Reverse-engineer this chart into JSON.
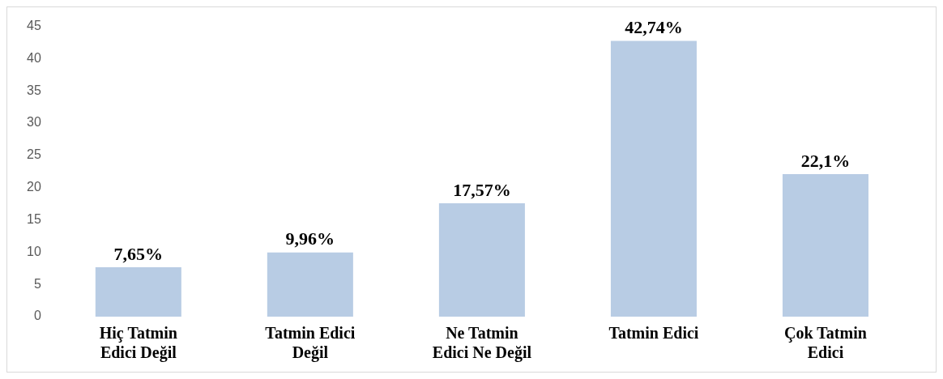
{
  "chart_data": {
    "type": "bar",
    "categories": [
      "Hiç Tatmin Edici Değil",
      "Tatmin Edici Değil",
      "Ne Tatmin Edici Ne Değil",
      "Tatmin Edici",
      "Çok Tatmin Edici"
    ],
    "values": [
      7.65,
      9.96,
      17.57,
      42.74,
      22.1
    ],
    "value_labels": [
      "7,65%",
      "9,96%",
      "17,57%",
      "42,74%",
      "22,1%"
    ],
    "color": "#b8cce4",
    "ylim": [
      0,
      45
    ],
    "yticks": [
      0,
      5,
      10,
      15,
      20,
      25,
      30,
      35,
      40,
      45
    ],
    "grid": false,
    "legend": false
  }
}
